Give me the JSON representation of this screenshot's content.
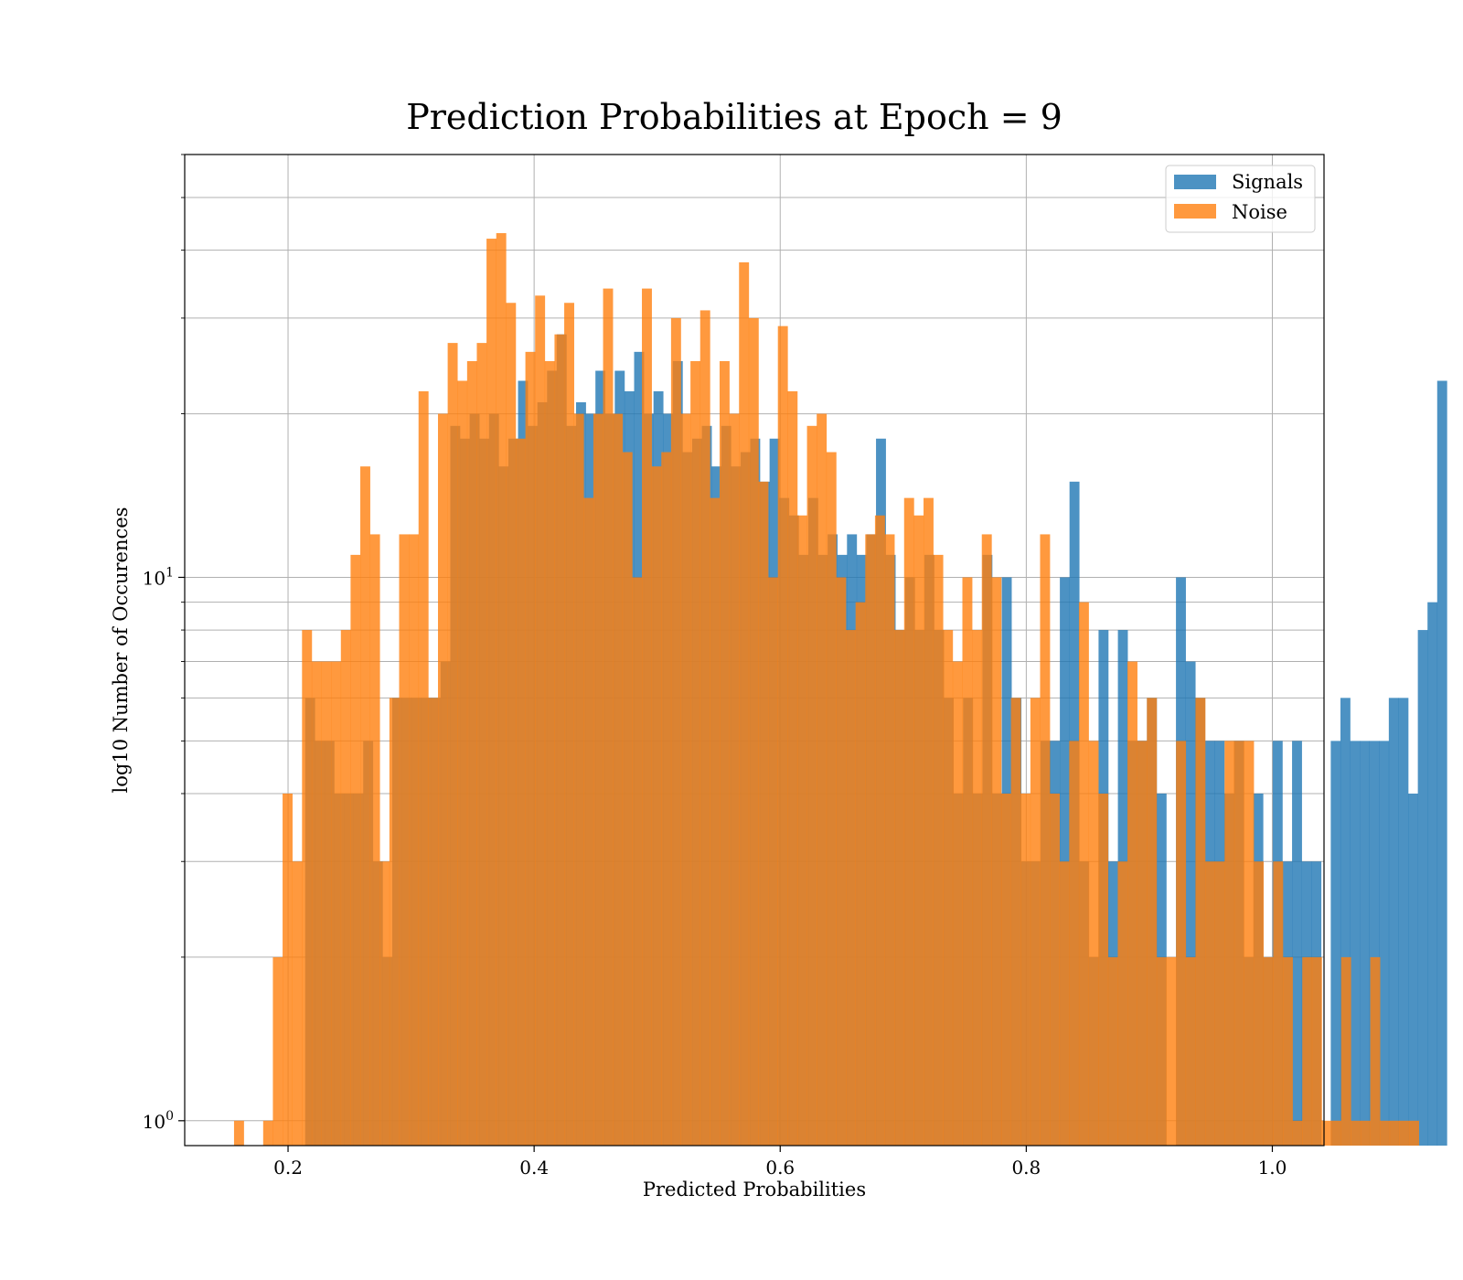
{
  "chart_data": {
    "type": "bar",
    "title": "Prediction Probabilities at Epoch = 9",
    "xlabel": "Predicted Probabilities",
    "ylabel": "log10 Number of Occurences",
    "xlim": [
      0.116,
      1.042
    ],
    "ylim": [
      0.9,
      60
    ],
    "yscale": "log",
    "grid": true,
    "legend_position": "top-right",
    "x_ticks": [
      0.2,
      0.4,
      0.6,
      0.8,
      1.0
    ],
    "x_tick_labels": [
      "0.2",
      "0.4",
      "0.6",
      "0.8",
      "1.0"
    ],
    "y_tick_labels": [
      {
        "value": 1,
        "base": "10",
        "exp": "0"
      },
      {
        "value": 10,
        "base": "10",
        "exp": "1"
      }
    ],
    "bar_alpha": 0.8,
    "series": [
      {
        "name": "Signals",
        "color": "#1f77b4",
        "bin_start": 0.2139,
        "bin_width": 0.007864,
        "values": [
          6,
          5,
          5,
          4,
          4,
          4,
          5,
          3,
          2,
          6,
          6,
          6,
          6,
          6,
          7,
          19,
          18,
          20,
          18,
          20,
          16,
          18,
          23,
          19,
          21,
          24,
          28,
          19,
          21,
          20,
          24,
          20,
          24,
          22,
          26,
          20,
          22,
          20,
          25,
          17,
          18,
          19,
          16,
          19,
          16,
          17,
          18,
          15,
          18,
          14,
          13,
          11,
          14,
          11,
          12,
          11,
          12,
          11,
          12,
          18,
          11,
          8,
          10,
          8,
          11,
          8,
          6,
          4,
          6,
          4,
          11,
          4,
          10,
          6,
          3,
          3,
          5,
          5,
          10,
          15,
          3,
          2,
          8,
          3,
          8,
          5,
          5,
          6,
          4,
          0,
          10,
          7,
          6,
          5,
          5,
          4,
          5,
          2,
          4,
          2,
          5,
          3,
          5,
          3,
          3,
          0,
          5,
          6,
          5,
          5,
          5,
          5,
          6,
          6,
          4,
          8,
          9,
          23
        ]
      },
      {
        "name": "Noise",
        "color": "#ff7f0e",
        "bin_start": 0.1561,
        "bin_width": 0.007893,
        "values": [
          1,
          0,
          0,
          1,
          2,
          4,
          3,
          8,
          7,
          7,
          7,
          8,
          11,
          16,
          12,
          3,
          6,
          12,
          12,
          22,
          6,
          20,
          27,
          23,
          25,
          27,
          42,
          43,
          32,
          18,
          26,
          33,
          25,
          28,
          32,
          20,
          14,
          20,
          34,
          20,
          17,
          10,
          34,
          16,
          17,
          30,
          20,
          25,
          31,
          14,
          25,
          20,
          38,
          30,
          15,
          10,
          29,
          22,
          13,
          19,
          20,
          17,
          10,
          8,
          9,
          12,
          13,
          12,
          8,
          14,
          13,
          14,
          11,
          8,
          7,
          10,
          8,
          12,
          10,
          4,
          6,
          4,
          6,
          12,
          4,
          3,
          5,
          9,
          5,
          4,
          2,
          3,
          7,
          5,
          6,
          2,
          2,
          5,
          2,
          6,
          3,
          3,
          5,
          5,
          5,
          3,
          2,
          3,
          2,
          1,
          2,
          2,
          1,
          1,
          2,
          1,
          1,
          2,
          1,
          1,
          1,
          1
        ]
      }
    ]
  }
}
